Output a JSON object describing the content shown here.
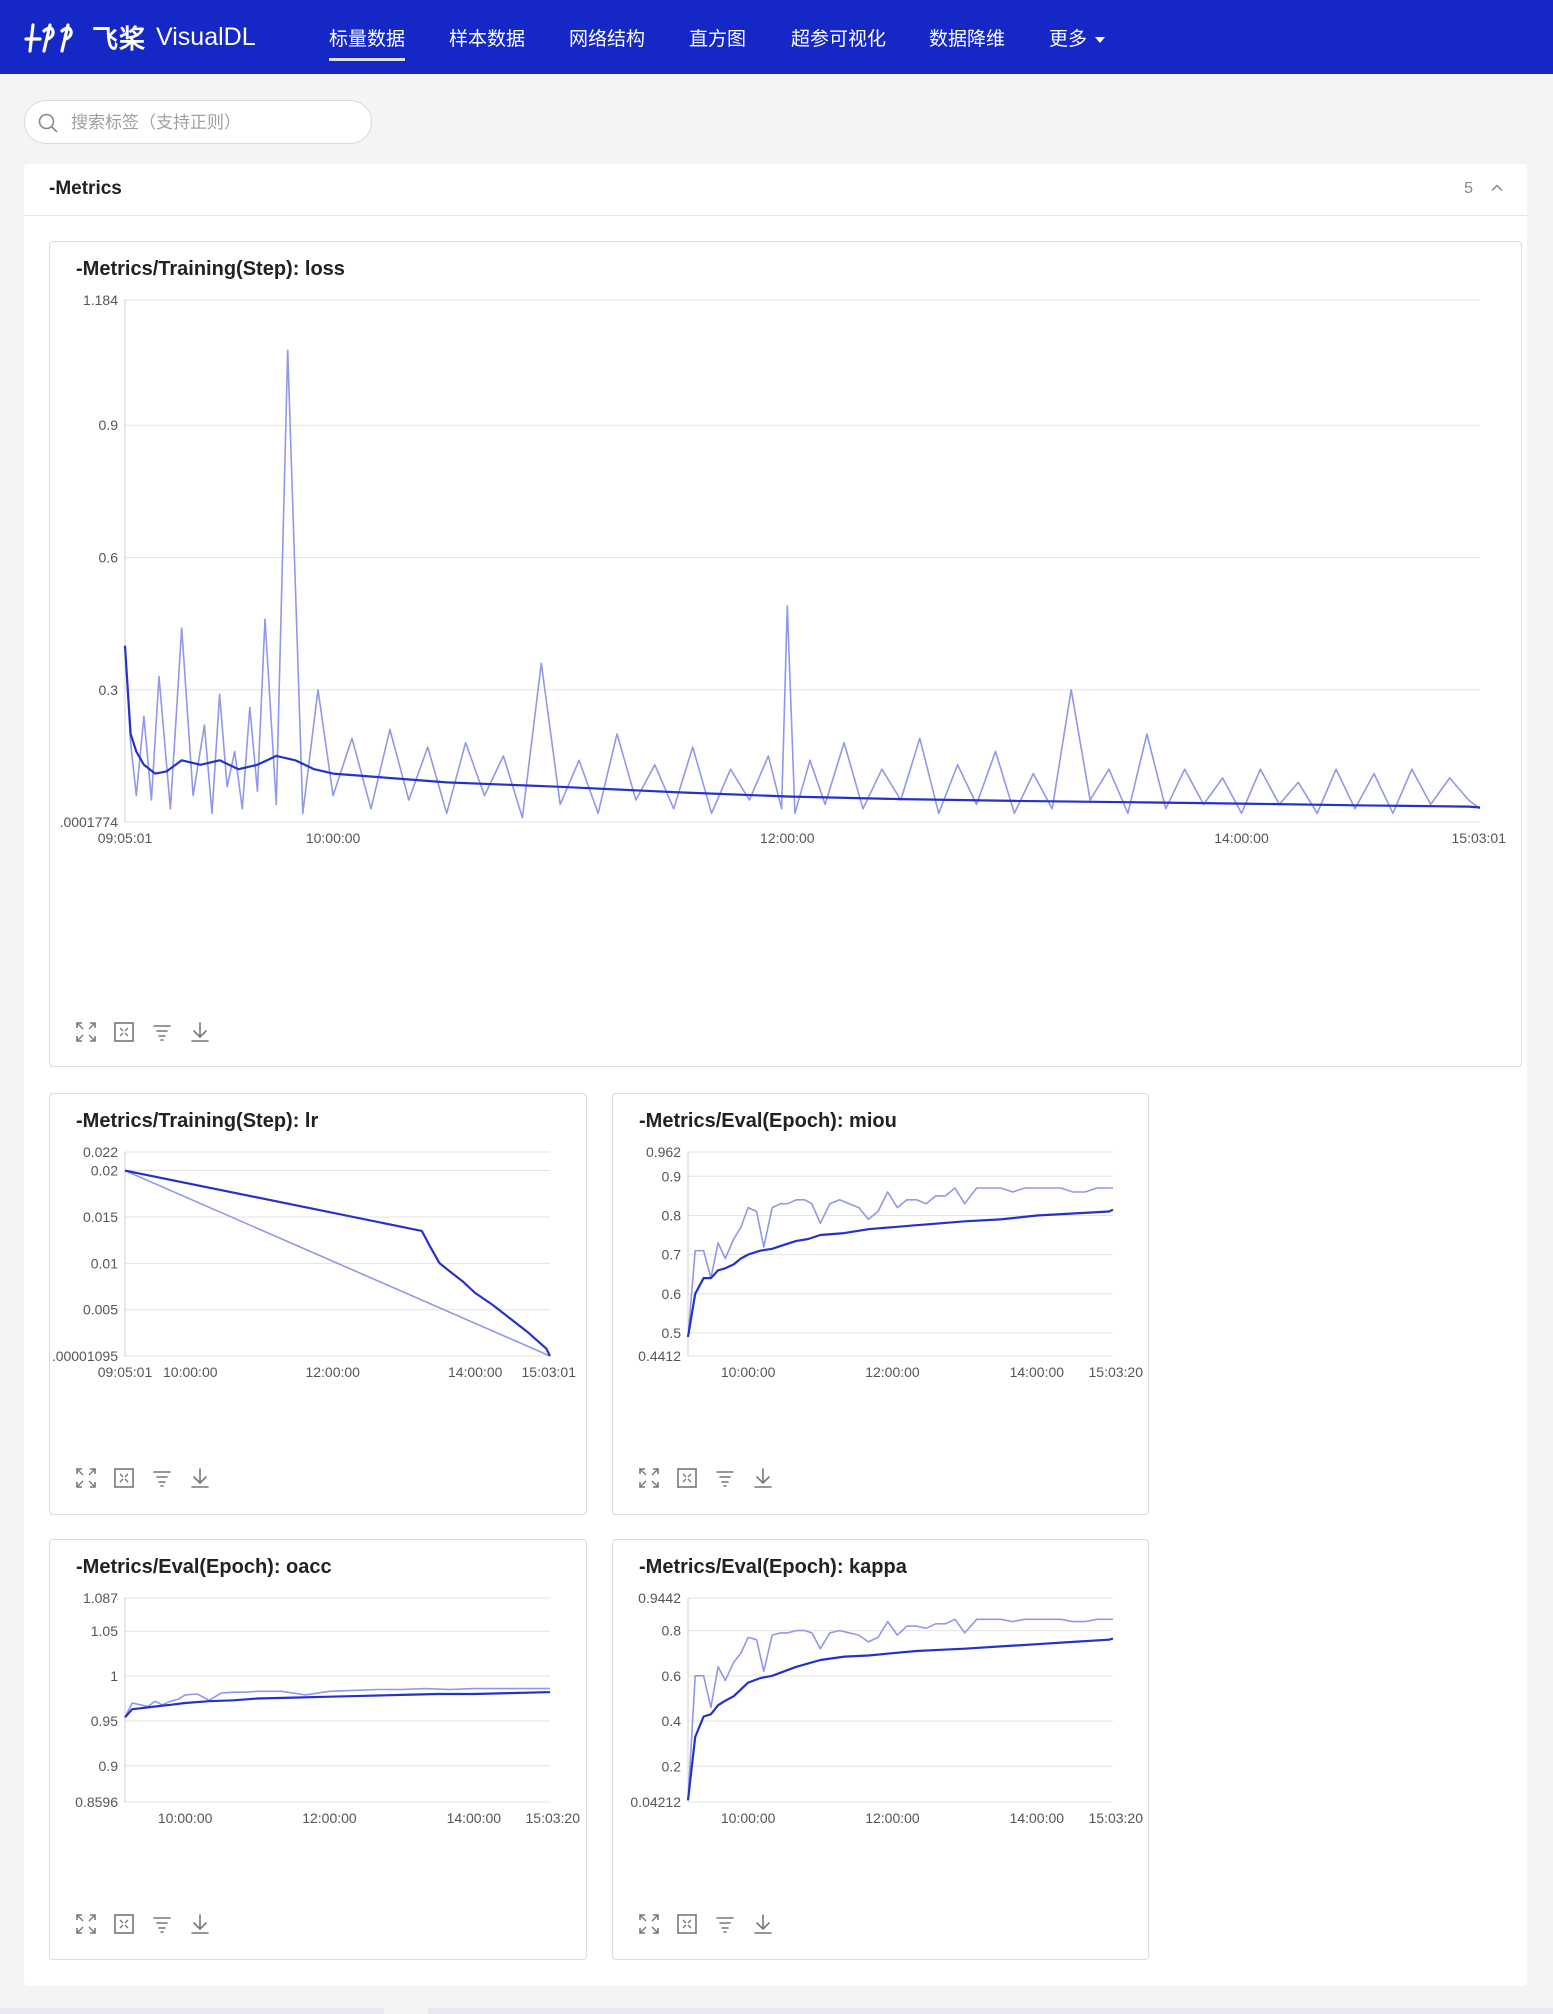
{
  "app": {
    "logo_cn": "飞桨",
    "logo_en": "VisualDL"
  },
  "nav": [
    {
      "label": "标量数据",
      "active": true
    },
    {
      "label": "样本数据",
      "active": false
    },
    {
      "label": "网络结构",
      "active": false
    },
    {
      "label": "直方图",
      "active": false
    },
    {
      "label": "超参可视化",
      "active": false
    },
    {
      "label": "数据降维",
      "active": false
    },
    {
      "label": "更多",
      "active": false,
      "dropdown": true
    }
  ],
  "search": {
    "placeholder": "搜索标签（支持正则）",
    "value": ""
  },
  "group": {
    "title": "-Metrics",
    "count": "5"
  },
  "colors": {
    "raw_line": "#9197eb",
    "smooth_line": "#2532c9",
    "header_bg": "#1527c5"
  },
  "tool_icons": [
    "fullscreen-icon",
    "fit-view-icon",
    "series-filter-icon",
    "download-icon"
  ],
  "chart_data": [
    {
      "type": "line",
      "title": "-Metrics/Training(Step): loss",
      "y_ticks": [
        "1.184",
        "0.9",
        "0.6",
        "0.3",
        ".0001774"
      ],
      "y_tick_values": [
        1.184,
        0.9,
        0.6,
        0.3,
        0.0001774
      ],
      "ylim": [
        0.0001774,
        1.184
      ],
      "x_ticks": [
        "09:05:01",
        "10:00:00",
        "12:00:00",
        "14:00:00",
        "15:03:01"
      ],
      "x_tick_values": [
        "09:05:01",
        "10:00:00",
        "12:00:00",
        "14:00:00",
        "15:03:01"
      ],
      "xlim": [
        "09:05:01",
        "15:03:01"
      ],
      "grid": true,
      "series": [
        {
          "role": "raw",
          "x": [
            "09:05:01",
            "09:06:30",
            "09:08:00",
            "09:10:00",
            "09:12:00",
            "09:14:00",
            "09:17:00",
            "09:20:00",
            "09:23:00",
            "09:26:00",
            "09:28:00",
            "09:30:00",
            "09:32:00",
            "09:34:00",
            "09:36:00",
            "09:38:00",
            "09:40:00",
            "09:42:00",
            "09:45:00",
            "09:48:00",
            "09:52:00",
            "09:56:00",
            "10:00:00",
            "10:05:00",
            "10:10:00",
            "10:15:00",
            "10:20:00",
            "10:25:00",
            "10:30:00",
            "10:35:00",
            "10:40:00",
            "10:45:00",
            "10:50:00",
            "10:55:00",
            "11:00:00",
            "11:05:00",
            "11:10:00",
            "11:15:00",
            "11:20:00",
            "11:25:00",
            "11:30:00",
            "11:35:00",
            "11:40:00",
            "11:45:00",
            "11:50:00",
            "11:55:00",
            "11:58:30",
            "12:00:00",
            "12:02:00",
            "12:06:00",
            "12:10:00",
            "12:15:00",
            "12:20:00",
            "12:25:00",
            "12:30:00",
            "12:35:00",
            "12:40:00",
            "12:45:00",
            "12:50:00",
            "12:55:00",
            "13:00:00",
            "13:05:00",
            "13:10:00",
            "13:15:00",
            "13:20:00",
            "13:25:00",
            "13:30:00",
            "13:35:00",
            "13:40:00",
            "13:45:00",
            "13:50:00",
            "13:55:00",
            "14:00:00",
            "14:05:00",
            "14:10:00",
            "14:15:00",
            "14:20:00",
            "14:25:00",
            "14:30:00",
            "14:35:00",
            "14:40:00",
            "14:45:00",
            "14:50:00",
            "14:55:00",
            "15:00:00",
            "15:03:01"
          ],
          "values": [
            0.4,
            0.18,
            0.06,
            0.24,
            0.05,
            0.33,
            0.03,
            0.44,
            0.06,
            0.22,
            0.02,
            0.29,
            0.08,
            0.16,
            0.03,
            0.26,
            0.07,
            0.46,
            0.04,
            1.07,
            0.02,
            0.3,
            0.06,
            0.19,
            0.03,
            0.21,
            0.05,
            0.17,
            0.02,
            0.18,
            0.06,
            0.15,
            0.01,
            0.36,
            0.04,
            0.14,
            0.02,
            0.2,
            0.05,
            0.13,
            0.03,
            0.17,
            0.02,
            0.12,
            0.05,
            0.15,
            0.03,
            0.49,
            0.02,
            0.14,
            0.04,
            0.18,
            0.03,
            0.12,
            0.05,
            0.19,
            0.02,
            0.13,
            0.04,
            0.16,
            0.02,
            0.11,
            0.03,
            0.3,
            0.05,
            0.12,
            0.02,
            0.2,
            0.03,
            0.12,
            0.04,
            0.1,
            0.02,
            0.12,
            0.04,
            0.09,
            0.02,
            0.12,
            0.03,
            0.11,
            0.02,
            0.12,
            0.04,
            0.1,
            0.05,
            0.03
          ]
        },
        {
          "role": "smoothed",
          "x": [
            "09:05:01",
            "09:06:30",
            "09:08:00",
            "09:10:00",
            "09:13:00",
            "09:16:00",
            "09:20:00",
            "09:25:00",
            "09:30:00",
            "09:35:00",
            "09:40:00",
            "09:45:00",
            "09:50:00",
            "09:55:00",
            "10:00:00",
            "10:15:00",
            "10:30:00",
            "11:00:00",
            "11:30:00",
            "12:00:00",
            "12:30:00",
            "13:00:00",
            "13:30:00",
            "14:00:00",
            "14:30:00",
            "15:00:00",
            "15:03:01"
          ],
          "values": [
            0.4,
            0.2,
            0.16,
            0.13,
            0.11,
            0.115,
            0.14,
            0.13,
            0.14,
            0.12,
            0.13,
            0.15,
            0.14,
            0.12,
            0.11,
            0.1,
            0.09,
            0.08,
            0.068,
            0.058,
            0.052,
            0.048,
            0.045,
            0.042,
            0.038,
            0.035,
            0.033
          ]
        }
      ]
    },
    {
      "type": "line",
      "title": "-Metrics/Training(Step): lr",
      "y_ticks": [
        "0.022",
        "0.02",
        "0.015",
        "0.01",
        "0.005",
        ".00001095"
      ],
      "y_tick_values": [
        0.022,
        0.02,
        0.015,
        0.01,
        0.005,
        1.095e-05
      ],
      "ylim": [
        1.095e-05,
        0.022
      ],
      "x_ticks": [
        "09:05:01",
        "10:00:00",
        "12:00:00",
        "14:00:00",
        "15:03:01"
      ],
      "x_tick_values": [
        "09:05:01",
        "10:00:00",
        "12:00:00",
        "14:00:00",
        "15:03:01"
      ],
      "xlim": [
        "09:05:01",
        "15:03:01"
      ],
      "grid": true,
      "series": [
        {
          "role": "raw",
          "x": [
            "09:05:01",
            "15:03:01"
          ],
          "values": [
            0.02,
            1.095e-05
          ]
        },
        {
          "role": "smoothed",
          "x": [
            "09:05:01",
            "13:15:00",
            "13:22:00",
            "13:30:00",
            "13:40:00",
            "13:50:00",
            "14:00:00",
            "14:15:00",
            "14:30:00",
            "14:45:00",
            "15:00:00",
            "15:03:01"
          ],
          "values": [
            0.02,
            0.0135,
            0.0118,
            0.01,
            0.009,
            0.008,
            0.0068,
            0.0055,
            0.004,
            0.0025,
            0.0008,
            1.095e-05
          ]
        }
      ]
    },
    {
      "type": "line",
      "title": "-Metrics/Eval(Epoch): miou",
      "y_ticks": [
        "0.962",
        "0.9",
        "0.8",
        "0.7",
        "0.6",
        "0.5",
        "0.4412"
      ],
      "y_tick_values": [
        0.962,
        0.9,
        0.8,
        0.7,
        0.6,
        0.5,
        0.4412
      ],
      "ylim": [
        0.4412,
        0.962
      ],
      "x_ticks": [
        "10:00:00",
        "12:00:00",
        "14:00:00",
        "15:03:20"
      ],
      "x_tick_values": [
        "10:00:00",
        "12:00:00",
        "14:00:00",
        "15:03:20"
      ],
      "xlim": [
        "09:10:00",
        "15:03:20"
      ],
      "grid": true,
      "series": [
        {
          "role": "raw",
          "x": [
            "09:10:00",
            "09:16:00",
            "09:23:00",
            "09:29:00",
            "09:35:00",
            "09:41:00",
            "09:48:00",
            "09:54:00",
            "10:00:00",
            "10:07:00",
            "10:13:00",
            "10:20:00",
            "10:27:00",
            "10:33:00",
            "10:40:00",
            "10:47:00",
            "10:53:00",
            "11:00:00",
            "11:08:00",
            "11:16:00",
            "11:24:00",
            "11:32:00",
            "11:40:00",
            "11:48:00",
            "11:56:00",
            "12:04:00",
            "12:12:00",
            "12:20:00",
            "12:28:00",
            "12:36:00",
            "12:44:00",
            "12:52:00",
            "13:00:00",
            "13:10:00",
            "13:20:00",
            "13:30:00",
            "13:40:00",
            "13:50:00",
            "14:00:00",
            "14:10:00",
            "14:20:00",
            "14:30:00",
            "14:40:00",
            "14:50:00",
            "15:00:00",
            "15:03:20"
          ],
          "values": [
            0.49,
            0.71,
            0.71,
            0.64,
            0.73,
            0.69,
            0.74,
            0.77,
            0.82,
            0.81,
            0.72,
            0.82,
            0.83,
            0.83,
            0.84,
            0.84,
            0.83,
            0.78,
            0.83,
            0.84,
            0.83,
            0.82,
            0.79,
            0.81,
            0.86,
            0.82,
            0.84,
            0.84,
            0.83,
            0.85,
            0.85,
            0.87,
            0.83,
            0.87,
            0.87,
            0.87,
            0.86,
            0.87,
            0.87,
            0.87,
            0.87,
            0.86,
            0.86,
            0.87,
            0.87,
            0.87
          ]
        },
        {
          "role": "smoothed",
          "x": [
            "09:10:00",
            "09:16:00",
            "09:23:00",
            "09:29:00",
            "09:35:00",
            "09:41:00",
            "09:48:00",
            "09:54:00",
            "10:00:00",
            "10:10:00",
            "10:20:00",
            "10:30:00",
            "10:40:00",
            "10:50:00",
            "11:00:00",
            "11:20:00",
            "11:40:00",
            "12:00:00",
            "12:20:00",
            "12:40:00",
            "13:00:00",
            "13:30:00",
            "14:00:00",
            "14:30:00",
            "15:00:00",
            "15:03:20"
          ],
          "values": [
            0.49,
            0.6,
            0.64,
            0.64,
            0.66,
            0.665,
            0.675,
            0.69,
            0.7,
            0.71,
            0.715,
            0.725,
            0.735,
            0.74,
            0.75,
            0.755,
            0.765,
            0.77,
            0.775,
            0.78,
            0.785,
            0.79,
            0.8,
            0.805,
            0.81,
            0.815
          ]
        }
      ]
    },
    {
      "type": "line",
      "title": "-Metrics/Eval(Epoch): oacc",
      "y_ticks": [
        "1.087",
        "1.05",
        "1",
        "0.95",
        "0.9",
        "0.8596"
      ],
      "y_tick_values": [
        1.087,
        1.05,
        1.0,
        0.95,
        0.9,
        0.8596
      ],
      "ylim": [
        0.8596,
        1.087
      ],
      "x_ticks": [
        "10:00:00",
        "12:00:00",
        "14:00:00",
        "15:03:20"
      ],
      "x_tick_values": [
        "10:00:00",
        "12:00:00",
        "14:00:00",
        "15:03:20"
      ],
      "xlim": [
        "09:10:00",
        "15:03:20"
      ],
      "grid": true,
      "series": [
        {
          "role": "raw",
          "x": [
            "09:10:00",
            "09:16:00",
            "09:23:00",
            "09:29:00",
            "09:35:00",
            "09:41:00",
            "09:48:00",
            "09:54:00",
            "10:00:00",
            "10:10:00",
            "10:20:00",
            "10:30:00",
            "10:40:00",
            "10:50:00",
            "11:00:00",
            "11:20:00",
            "11:40:00",
            "12:00:00",
            "12:20:00",
            "12:40:00",
            "13:00:00",
            "13:20:00",
            "13:40:00",
            "14:00:00",
            "14:20:00",
            "14:40:00",
            "15:00:00",
            "15:03:20"
          ],
          "values": [
            0.954,
            0.97,
            0.968,
            0.966,
            0.972,
            0.968,
            0.972,
            0.974,
            0.979,
            0.98,
            0.973,
            0.981,
            0.982,
            0.982,
            0.983,
            0.983,
            0.979,
            0.983,
            0.984,
            0.985,
            0.985,
            0.986,
            0.985,
            0.986,
            0.986,
            0.986,
            0.986,
            0.986
          ]
        },
        {
          "role": "smoothed",
          "x": [
            "09:10:00",
            "09:16:00",
            "09:23:00",
            "09:29:00",
            "09:35:00",
            "09:41:00",
            "09:48:00",
            "09:54:00",
            "10:00:00",
            "10:20:00",
            "10:40:00",
            "11:00:00",
            "11:30:00",
            "12:00:00",
            "12:30:00",
            "13:00:00",
            "13:30:00",
            "14:00:00",
            "14:30:00",
            "15:00:00",
            "15:03:20"
          ],
          "values": [
            0.954,
            0.963,
            0.964,
            0.965,
            0.966,
            0.967,
            0.968,
            0.969,
            0.97,
            0.972,
            0.973,
            0.975,
            0.976,
            0.977,
            0.978,
            0.979,
            0.98,
            0.98,
            0.981,
            0.982,
            0.982
          ]
        }
      ]
    },
    {
      "type": "line",
      "title": "-Metrics/Eval(Epoch): kappa",
      "y_ticks": [
        "0.9442",
        "0.8",
        "0.6",
        "0.4",
        "0.2",
        "0.04212"
      ],
      "y_tick_values": [
        0.9442,
        0.8,
        0.6,
        0.4,
        0.2,
        0.04212
      ],
      "ylim": [
        0.04212,
        0.9442
      ],
      "x_ticks": [
        "10:00:00",
        "12:00:00",
        "14:00:00",
        "15:03:20"
      ],
      "x_tick_values": [
        "10:00:00",
        "12:00:00",
        "14:00:00",
        "15:03:20"
      ],
      "xlim": [
        "09:10:00",
        "15:03:20"
      ],
      "grid": true,
      "series": [
        {
          "role": "raw",
          "x": [
            "09:10:00",
            "09:16:00",
            "09:23:00",
            "09:29:00",
            "09:35:00",
            "09:41:00",
            "09:48:00",
            "09:54:00",
            "10:00:00",
            "10:07:00",
            "10:13:00",
            "10:20:00",
            "10:27:00",
            "10:33:00",
            "10:40:00",
            "10:47:00",
            "10:53:00",
            "11:00:00",
            "11:08:00",
            "11:16:00",
            "11:24:00",
            "11:32:00",
            "11:40:00",
            "11:48:00",
            "11:56:00",
            "12:04:00",
            "12:12:00",
            "12:20:00",
            "12:28:00",
            "12:36:00",
            "12:44:00",
            "12:52:00",
            "13:00:00",
            "13:10:00",
            "13:20:00",
            "13:30:00",
            "13:40:00",
            "13:50:00",
            "14:00:00",
            "14:10:00",
            "14:20:00",
            "14:30:00",
            "14:40:00",
            "14:50:00",
            "15:00:00",
            "15:03:20"
          ],
          "values": [
            0.05,
            0.6,
            0.6,
            0.46,
            0.64,
            0.58,
            0.66,
            0.7,
            0.77,
            0.76,
            0.62,
            0.78,
            0.79,
            0.79,
            0.8,
            0.8,
            0.79,
            0.72,
            0.79,
            0.8,
            0.79,
            0.78,
            0.75,
            0.77,
            0.84,
            0.78,
            0.82,
            0.82,
            0.81,
            0.83,
            0.83,
            0.85,
            0.79,
            0.85,
            0.85,
            0.85,
            0.84,
            0.85,
            0.85,
            0.85,
            0.85,
            0.84,
            0.84,
            0.85,
            0.85,
            0.85
          ]
        },
        {
          "role": "smoothed",
          "x": [
            "09:10:00",
            "09:16:00",
            "09:23:00",
            "09:29:00",
            "09:35:00",
            "09:41:00",
            "09:48:00",
            "09:54:00",
            "10:00:00",
            "10:10:00",
            "10:20:00",
            "10:30:00",
            "10:40:00",
            "10:50:00",
            "11:00:00",
            "11:20:00",
            "11:40:00",
            "12:00:00",
            "12:20:00",
            "12:40:00",
            "13:00:00",
            "13:30:00",
            "14:00:00",
            "14:30:00",
            "15:00:00",
            "15:03:20"
          ],
          "values": [
            0.05,
            0.33,
            0.42,
            0.43,
            0.47,
            0.49,
            0.51,
            0.54,
            0.57,
            0.59,
            0.6,
            0.62,
            0.64,
            0.655,
            0.67,
            0.685,
            0.69,
            0.7,
            0.71,
            0.715,
            0.72,
            0.73,
            0.74,
            0.75,
            0.76,
            0.765
          ]
        }
      ]
    }
  ]
}
